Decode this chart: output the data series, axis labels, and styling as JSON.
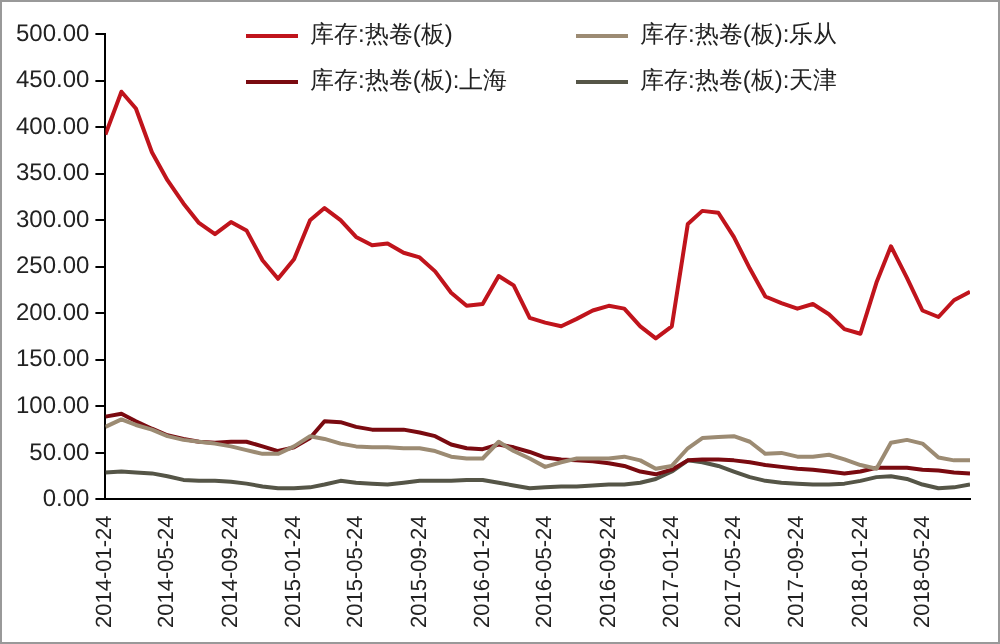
{
  "chart_data": {
    "type": "line",
    "x": [
      "2014-01-24",
      "2014-02-24",
      "2014-03-24",
      "2014-04-24",
      "2014-05-24",
      "2014-06-24",
      "2014-07-24",
      "2014-08-24",
      "2014-09-24",
      "2014-10-24",
      "2014-11-24",
      "2014-12-24",
      "2015-01-24",
      "2015-02-24",
      "2015-03-24",
      "2015-04-24",
      "2015-05-24",
      "2015-06-24",
      "2015-07-24",
      "2015-08-24",
      "2015-09-24",
      "2015-10-24",
      "2015-11-24",
      "2015-12-24",
      "2016-01-24",
      "2016-02-24",
      "2016-03-24",
      "2016-04-24",
      "2016-05-24",
      "2016-06-24",
      "2016-07-24",
      "2016-08-24",
      "2016-09-24",
      "2016-10-24",
      "2016-11-24",
      "2016-12-24",
      "2017-01-24",
      "2017-02-24",
      "2017-03-24",
      "2017-04-24",
      "2017-05-24",
      "2017-06-24",
      "2017-07-24",
      "2017-08-24",
      "2017-09-24",
      "2017-10-24",
      "2017-11-24",
      "2017-12-24",
      "2018-01-24",
      "2018-02-24",
      "2018-03-24",
      "2018-04-24",
      "2018-05-24",
      "2018-06-24",
      "2018-07-24",
      "2018-08-24"
    ],
    "series": [
      {
        "name": "库存:热卷(板)",
        "color": "#c0141c",
        "values": [
          392,
          438,
          420,
          373,
          343,
          318,
          297,
          285,
          298,
          289,
          257,
          237,
          258,
          300,
          313,
          300,
          282,
          273,
          275,
          265,
          260,
          245,
          222,
          208,
          210,
          240,
          230,
          195,
          190,
          186,
          194,
          203,
          208,
          205,
          186,
          173,
          186,
          296,
          310,
          308,
          282,
          248,
          218,
          211,
          205,
          210,
          199,
          183,
          178,
          233,
          272,
          238,
          203,
          196,
          214,
          223
        ]
      },
      {
        "name": "库存:热卷(板):乐从",
        "color": "#9c8b73",
        "values": [
          78,
          86,
          80,
          75,
          68,
          64,
          62,
          60,
          57,
          53,
          49,
          49,
          57,
          68,
          65,
          60,
          57,
          56,
          56,
          55,
          55,
          52,
          46,
          44,
          44,
          62,
          52,
          44,
          35,
          40,
          44,
          44,
          44,
          46,
          42,
          33,
          36,
          55,
          66,
          67,
          68,
          62,
          49,
          50,
          46,
          46,
          48,
          43,
          37,
          33,
          61,
          64,
          60,
          45,
          42,
          42
        ]
      },
      {
        "name": "库存:热卷(板):上海",
        "color": "#7a0a10",
        "values": [
          89,
          92,
          84,
          76,
          69,
          65,
          62,
          61,
          62,
          62,
          57,
          52,
          56,
          66,
          84,
          83,
          78,
          75,
          75,
          75,
          72,
          68,
          59,
          55,
          54,
          59,
          56,
          51,
          45,
          43,
          42,
          41,
          39,
          36,
          30,
          27,
          32,
          42,
          43,
          43,
          42,
          40,
          37,
          35,
          33,
          32,
          30,
          28,
          30,
          34,
          34,
          34,
          32,
          31,
          29,
          28
        ]
      },
      {
        "name": "库存:热卷(板):天津",
        "color": "#555547",
        "values": [
          29,
          30,
          29,
          28,
          25,
          21,
          20,
          20,
          19,
          17,
          14,
          12,
          12,
          13,
          16,
          20,
          18,
          17,
          16,
          18,
          20,
          20,
          20,
          21,
          21,
          18,
          15,
          12,
          13,
          14,
          14,
          15,
          16,
          16,
          18,
          22,
          30,
          42,
          40,
          36,
          30,
          24,
          20,
          18,
          17,
          16,
          16,
          17,
          20,
          24,
          25,
          22,
          16,
          12,
          13,
          16
        ]
      }
    ],
    "xlim": [
      "2014-01-24",
      "2018-08-24"
    ],
    "xticks": [
      "2014-01-24",
      "2014-05-24",
      "2014-09-24",
      "2015-01-24",
      "2015-05-24",
      "2015-09-24",
      "2016-01-24",
      "2016-05-24",
      "2016-09-24",
      "2017-01-24",
      "2017-05-24",
      "2017-09-24",
      "2018-01-24",
      "2018-05-24"
    ],
    "ylim": [
      0,
      500
    ],
    "yticks": [
      {
        "value": 0,
        "label": "0.00"
      },
      {
        "value": 50,
        "label": "50.00"
      },
      {
        "value": 100,
        "label": "100.00"
      },
      {
        "value": 150,
        "label": "150.00"
      },
      {
        "value": 200,
        "label": "200.00"
      },
      {
        "value": 250,
        "label": "250.00"
      },
      {
        "value": 300,
        "label": "300.00"
      },
      {
        "value": 350,
        "label": "350.00"
      },
      {
        "value": 400,
        "label": "400.00"
      },
      {
        "value": 450,
        "label": "450.00"
      },
      {
        "value": 500,
        "label": "500.00"
      }
    ],
    "grid": false,
    "legend": "top",
    "marker": "none",
    "line_style": "solid"
  }
}
